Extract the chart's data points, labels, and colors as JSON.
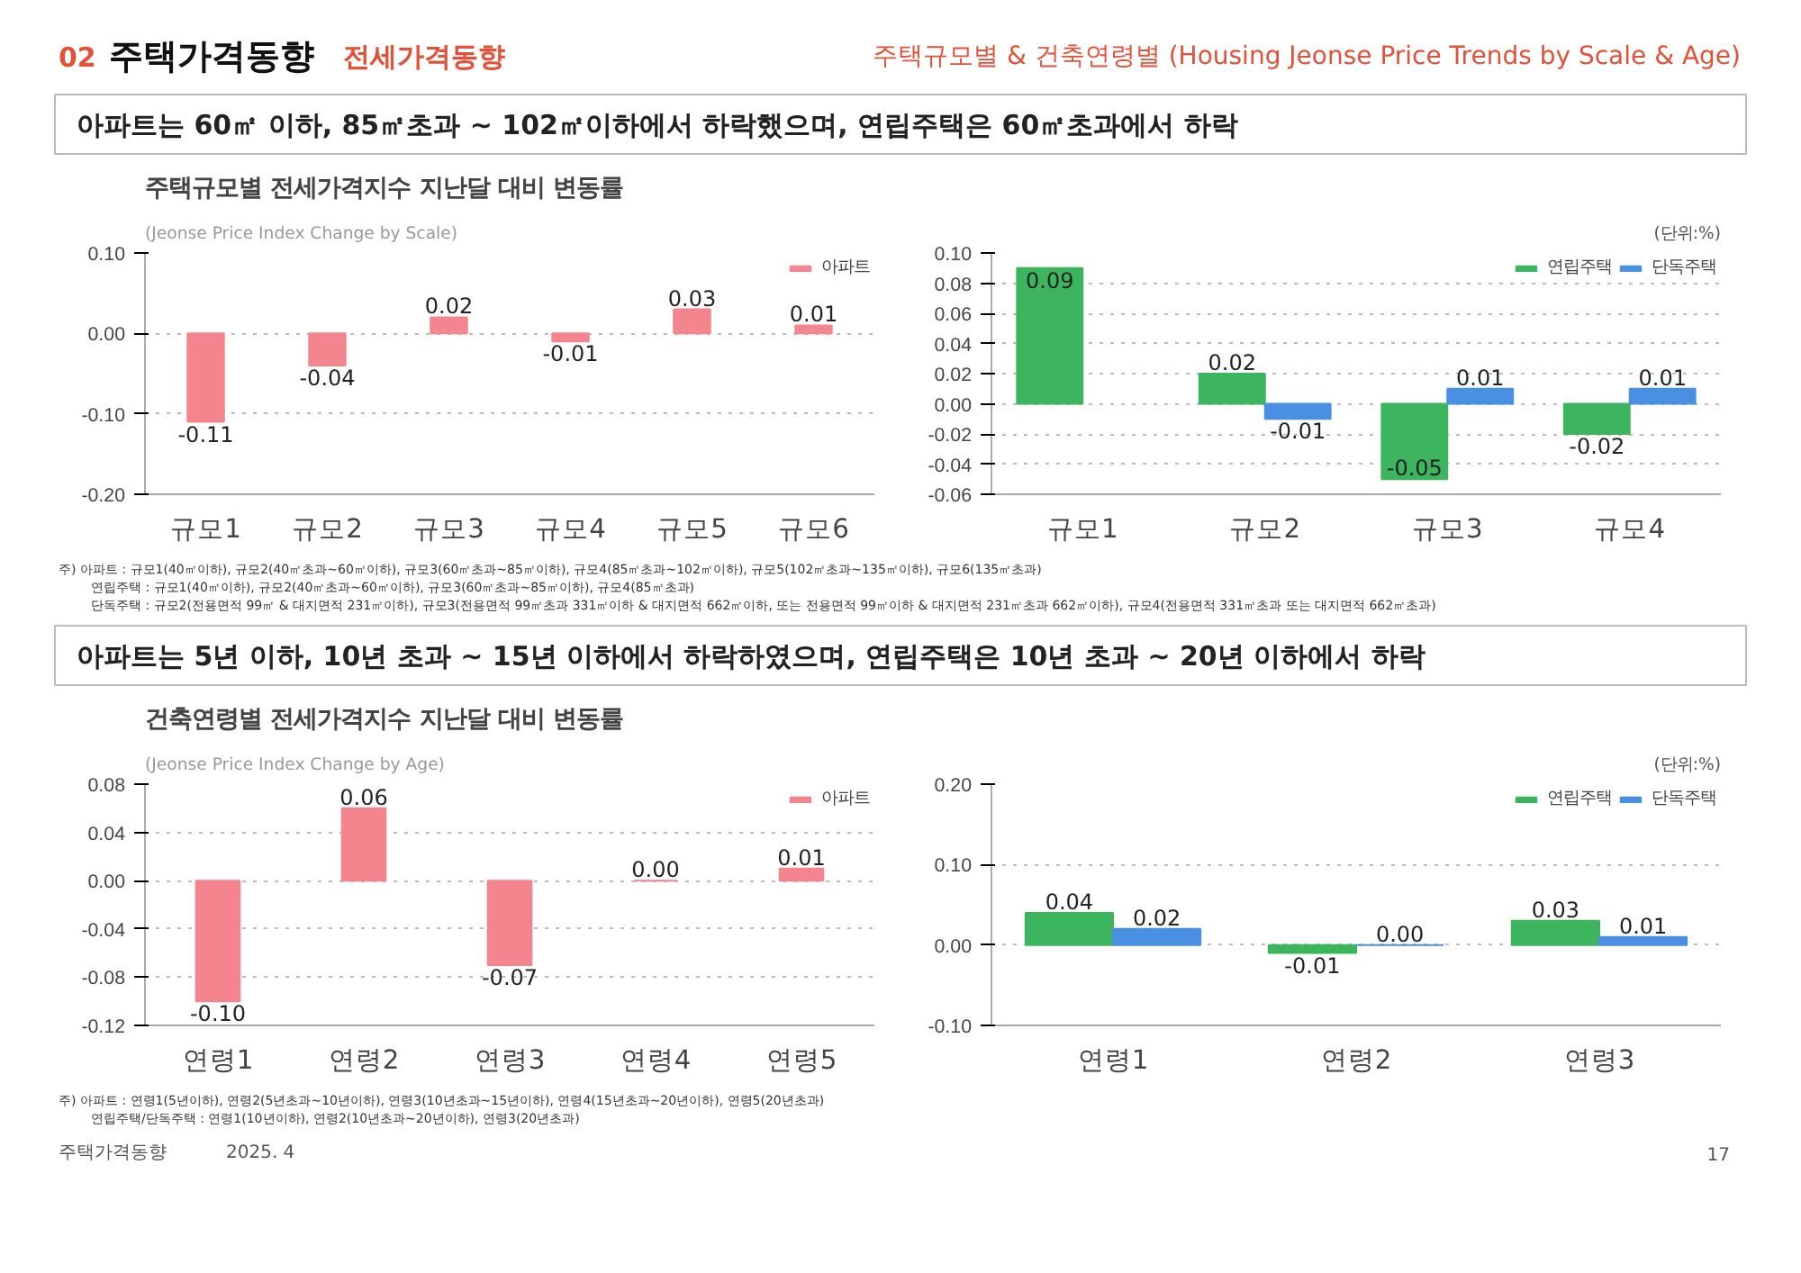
{
  "chart_data": [
    {
      "type": "bar",
      "title": "주택규모별 전세가격지수 지난달 대비 변동률",
      "subtitle": "(Jeonse Price Index Change by Scale)",
      "annotations": [
        "02",
        "주택가격동향",
        "전세가격동향",
        "주택규모별 & 건축연령별 (Housing Jeonse Price Trends by Scale & Age)",
        "아파트는 60㎡ 이하, 85㎡초과 ~ 102㎡이하에서 하락했으며, 연립주택은 60㎡초과에서 하락",
        "주) 아파트 : 규모1(40㎡이하), 규모2(40㎡초과~60㎡이하), 규모3(60㎡초과~85㎡이하), 규모4(85㎡초과~102㎡이하), 규모5(102㎡초과~135㎡이하), 규모6(135㎡초과)",
        "연립주택 : 규모1(40㎡이하), 규모2(40㎡초과~60㎡이하), 규모3(60㎡초과~85㎡이하), 규모4(85㎡초과)",
        "단독주택 : 규모2(전용면적 99㎡ & 대지면적 231㎡이하), 규모3(전용면적 99㎡초과 331㎡이하 & 대지면적 662㎡이하, 또는 전용면적 99㎡이하 & 대지면적 231㎡초과 662㎡이하), 규모4(전용면적 331㎡초과 또는 대지면적 662㎡초과)"
      ],
      "categories": [
        "규모1",
        "규모2",
        "규모3",
        "규모4",
        "규모5",
        "규모6"
      ],
      "series": [
        {
          "name": "아파트",
          "color": "#f4858e",
          "values": [
            -0.11,
            -0.04,
            0.02,
            -0.01,
            0.03,
            0.01
          ],
          "value_labels": [
            "-0.11",
            "-0.04",
            "0.02",
            "-0.01",
            "0.03",
            "0.01"
          ]
        }
      ],
      "ylim": [
        -0.2,
        0.1
      ],
      "yticks": [
        {
          "value": -0.2,
          "label": "-0.20"
        },
        {
          "value": -0.1,
          "label": "-0.10"
        },
        {
          "value": 0,
          "label": "0.00"
        },
        {
          "value": 0.1,
          "label": "0.10"
        }
      ],
      "grid": "y",
      "legend": "top right"
    },
    {
      "type": "bar",
      "annotations": [
        "(단위:%)"
      ],
      "categories": [
        "규모1",
        "규모2",
        "규모3",
        "규모4"
      ],
      "series": [
        {
          "name": "연립주택",
          "color": "#3cb55e",
          "values": [
            0.09,
            0.02,
            -0.05,
            -0.02
          ],
          "value_labels": [
            "0.09",
            "0.02",
            "-0.05",
            "-0.02"
          ]
        },
        {
          "name": "단독주택",
          "color": "#4a90e2",
          "values": [
            null,
            -0.01,
            0.01,
            0.01
          ],
          "value_labels": [
            null,
            "-0.01",
            "0.01",
            "0.01"
          ]
        }
      ],
      "ylim": [
        -0.06,
        0.1
      ],
      "yticks": [
        {
          "value": -0.06,
          "label": "-0.06"
        },
        {
          "value": -0.04,
          "label": "-0.04"
        },
        {
          "value": -0.02,
          "label": "-0.02"
        },
        {
          "value": 0,
          "label": "0.00"
        },
        {
          "value": 0.02,
          "label": "0.02"
        },
        {
          "value": 0.04,
          "label": "0.04"
        },
        {
          "value": 0.06,
          "label": "0.06"
        },
        {
          "value": 0.08,
          "label": "0.08"
        },
        {
          "value": 0.1,
          "label": "0.10"
        }
      ],
      "grid": "y",
      "legend": "top right"
    },
    {
      "type": "bar",
      "title": "건축연령별 전세가격지수 지난달 대비 변동률",
      "subtitle": "(Jeonse Price Index Change by Age)",
      "annotations": [
        "아파트는 5년 이하, 10년 초과 ~ 15년 이하에서 하락하였으며, 연립주택은 10년 초과 ~ 20년 이하에서 하락",
        "주) 아파트 : 연령1(5년이하), 연령2(5년초과~10년이하), 연령3(10년초과~15년이하), 연령4(15년초과~20년이하), 연령5(20년초과)",
        "연립주택/단독주택 : 연령1(10년이하), 연령2(10년초과~20년이하), 연령3(20년초과)",
        "주택가격동향",
        "2025. 4",
        "17"
      ],
      "categories": [
        "연령1",
        "연령2",
        "연령3",
        "연령4",
        "연령5"
      ],
      "series": [
        {
          "name": "아파트",
          "color": "#f4858e",
          "values": [
            -0.1,
            0.06,
            -0.07,
            0.0,
            0.01
          ],
          "value_labels": [
            "-0.10",
            "0.06",
            "-0.07",
            "0.00",
            "0.01"
          ]
        }
      ],
      "ylim": [
        -0.12,
        0.08
      ],
      "yticks": [
        {
          "value": -0.12,
          "label": "-0.12"
        },
        {
          "value": -0.08,
          "label": "-0.08"
        },
        {
          "value": -0.04,
          "label": "-0.04"
        },
        {
          "value": 0,
          "label": "0.00"
        },
        {
          "value": 0.04,
          "label": "0.04"
        },
        {
          "value": 0.08,
          "label": "0.08"
        }
      ],
      "grid": "y",
      "legend": "top right"
    },
    {
      "type": "bar",
      "annotations": [
        "(단위:%)"
      ],
      "categories": [
        "연령1",
        "연령2",
        "연령3"
      ],
      "series": [
        {
          "name": "연립주택",
          "color": "#3cb55e",
          "values": [
            0.04,
            -0.01,
            0.03
          ],
          "value_labels": [
            "0.04",
            "-0.01",
            "0.03"
          ]
        },
        {
          "name": "단독주택",
          "color": "#4a90e2",
          "values": [
            0.02,
            0.0,
            0.01
          ],
          "value_labels": [
            "0.02",
            "0.00",
            "0.01"
          ]
        }
      ],
      "ylim": [
        -0.1,
        0.2
      ],
      "yticks": [
        {
          "value": -0.1,
          "label": "-0.10"
        },
        {
          "value": 0,
          "label": "0.00"
        },
        {
          "value": 0.1,
          "label": "0.10"
        },
        {
          "value": 0.2,
          "label": "0.20"
        }
      ],
      "grid": "y",
      "legend": "top right"
    }
  ]
}
